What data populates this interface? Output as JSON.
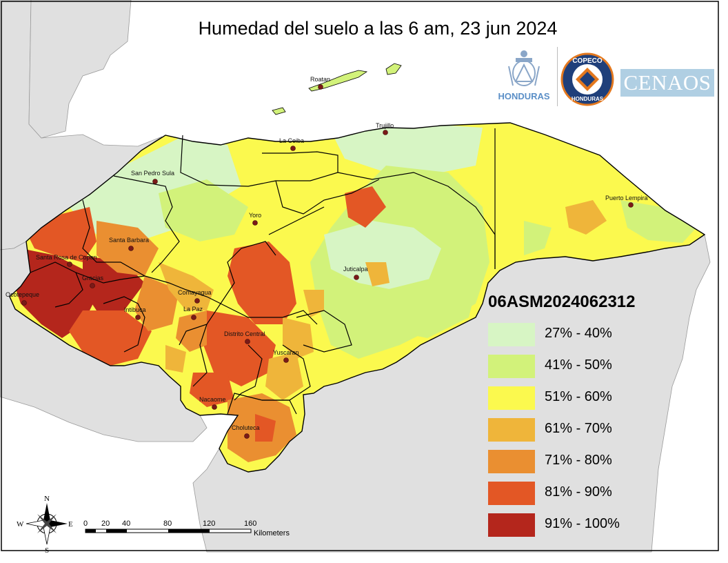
{
  "title": "Humedad del suelo a las 6 am, 23 jun 2024",
  "logos": {
    "honduras": "HONDURAS",
    "copeco": "COPECO",
    "copeco_sub": "HONDURAS",
    "cenaos": "CENAOS"
  },
  "legend": {
    "title": "06ASM2024062312",
    "classes": [
      {
        "label": "27% - 40%",
        "color": "#d7f5c4"
      },
      {
        "label": "41% - 50%",
        "color": "#d2f27a"
      },
      {
        "label": "51% - 60%",
        "color": "#fbf94e"
      },
      {
        "label": "61% - 70%",
        "color": "#efb53a"
      },
      {
        "label": "71% - 80%",
        "color": "#ea8f31"
      },
      {
        "label": "81% - 90%",
        "color": "#e35725"
      },
      {
        "label": "91% - 100%",
        "color": "#b4261c"
      }
    ]
  },
  "cities": [
    {
      "name": "Roatan"
    },
    {
      "name": "Trujillo"
    },
    {
      "name": "La Ceiba"
    },
    {
      "name": "San Pedro Sula"
    },
    {
      "name": "Puerto Lempira"
    },
    {
      "name": "Yoro"
    },
    {
      "name": "Santa Barbara"
    },
    {
      "name": "Santa Rosa de Copan"
    },
    {
      "name": "Gracias"
    },
    {
      "name": "Ocotepeque"
    },
    {
      "name": "Juticalpa"
    },
    {
      "name": "Comayagua"
    },
    {
      "name": "Intibuca"
    },
    {
      "name": "La Paz"
    },
    {
      "name": "Distrito Central"
    },
    {
      "name": "Yuscaran"
    },
    {
      "name": "Nacaome"
    },
    {
      "name": "Choluteca"
    }
  ],
  "scale": {
    "ticks": [
      "0",
      "20",
      "40",
      "80",
      "120",
      "160"
    ],
    "unit": "Kilometers"
  },
  "compass": {
    "n": "N",
    "s": "S",
    "e": "E",
    "w": "W"
  },
  "colors": {
    "neighbor_land": "#e0e0e0",
    "sea": "#ffffff",
    "border": "#000000",
    "city_dot": "#7a1a18"
  }
}
